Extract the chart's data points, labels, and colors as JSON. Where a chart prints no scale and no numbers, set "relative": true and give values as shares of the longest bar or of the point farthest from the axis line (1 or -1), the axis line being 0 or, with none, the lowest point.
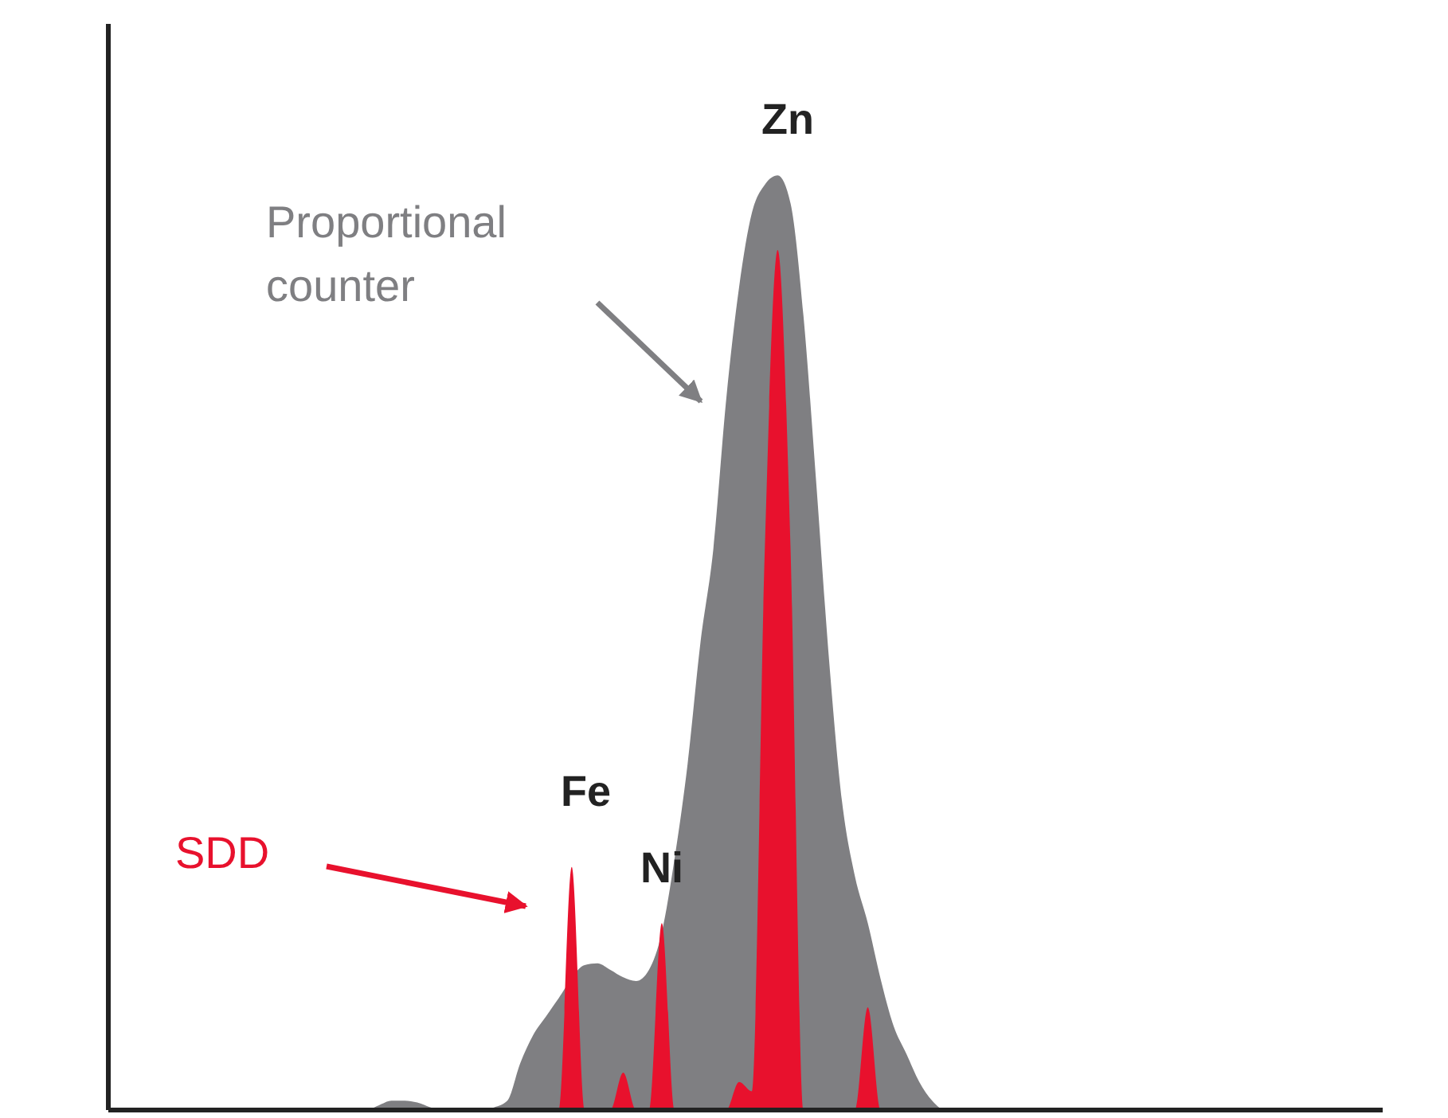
{
  "chart_data": {
    "type": "area",
    "relative": true,
    "legend": false,
    "grid": false,
    "tick_labels": false,
    "categories": [
      null,
      null,
      null,
      null,
      null,
      null,
      null,
      null,
      null,
      null,
      null,
      null,
      null,
      null,
      null,
      null,
      null,
      null,
      null,
      null,
      null,
      null,
      null,
      null,
      null,
      null,
      null,
      null,
      null,
      null,
      null,
      null,
      null,
      null,
      null,
      null,
      null,
      null,
      null,
      null,
      null,
      null,
      null,
      null,
      null,
      null,
      null,
      null,
      null,
      null,
      null,
      null,
      null,
      null,
      null,
      null,
      null,
      null,
      null,
      null,
      null,
      null,
      null,
      null,
      null,
      null,
      null,
      null,
      null,
      null,
      null,
      null,
      null,
      null,
      null,
      null,
      null,
      null,
      null,
      null,
      null,
      null,
      null,
      null,
      null,
      null,
      null,
      null,
      null,
      null,
      null,
      null,
      null,
      null,
      null,
      null,
      null,
      null,
      null,
      null
    ],
    "series": [
      {
        "name": "Proportional counter",
        "color": "#7f7f82",
        "values": [
          0,
          0,
          0,
          0,
          0,
          0,
          0,
          0,
          0,
          0,
          0,
          0,
          0,
          0,
          0,
          0,
          0,
          0,
          0,
          0,
          0,
          0.005,
          0.01,
          0.01,
          0.008,
          0.003,
          0,
          0,
          0,
          0,
          0.003,
          0.01,
          0.05,
          0.08,
          0.1,
          0.12,
          null,
          0.155,
          0.157,
          0.15,
          0.142,
          0.138,
          0.15,
          0.19,
          0.27,
          0.37,
          0.5,
          0.6,
          0.76,
          0.88,
          0.96,
          0.99,
          1,
          0.97,
          0.85,
          0.67,
          0.48,
          0.33,
          0.25,
          0.2,
          0.14,
          0.09,
          0.06,
          0.03,
          0.01,
          0,
          0,
          0,
          0,
          0,
          0,
          0,
          0,
          0,
          0,
          0,
          0,
          0,
          0,
          0,
          0,
          0,
          0,
          0,
          0,
          0,
          0,
          0,
          0,
          0,
          0,
          0,
          0,
          0,
          0,
          0,
          0,
          0,
          0,
          0
        ]
      },
      {
        "name": "SDD",
        "color": "#e8112d",
        "values": [
          0,
          0,
          0,
          0,
          0,
          0,
          0,
          0,
          0,
          0,
          0,
          0,
          0,
          0,
          0,
          0,
          0,
          0,
          0,
          0,
          0,
          0,
          0,
          0,
          0,
          0,
          0,
          0,
          0,
          0,
          0,
          0,
          0,
          0,
          0,
          0,
          0.26,
          0,
          0,
          0,
          0.04,
          0,
          0,
          0.2,
          0,
          0,
          0,
          0,
          0,
          0.03,
          0.02,
          0.6,
          0.92,
          0.6,
          0,
          0,
          0,
          0,
          0,
          0.11,
          0,
          0,
          0,
          0,
          0,
          0,
          0,
          0,
          0,
          0,
          0,
          0,
          0,
          0,
          0,
          0,
          0,
          0,
          0,
          0,
          0,
          0,
          0,
          0,
          0,
          0,
          0,
          0,
          0,
          0,
          0,
          0,
          0,
          0,
          0,
          0,
          0,
          0,
          0,
          0
        ]
      }
    ],
    "annotations": [
      "Zn",
      "Fe",
      "Ni"
    ]
  }
}
